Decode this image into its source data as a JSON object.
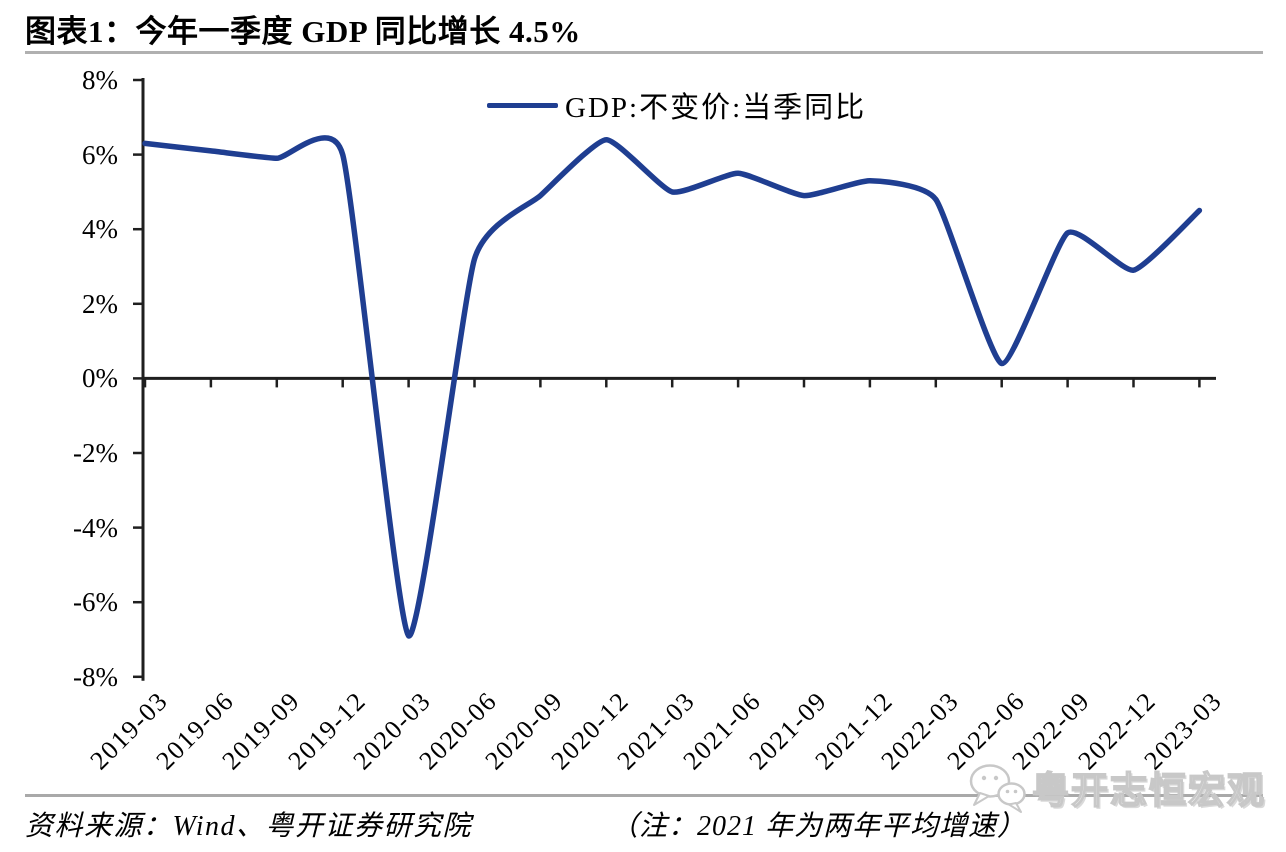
{
  "title": "图表1：今年一季度 GDP 同比增长 4.5%",
  "legend": {
    "label": "GDP:不变价:当季同比"
  },
  "footer": {
    "source": "资料来源：Wind、粤开证券研究院",
    "note": "（注：2021 年为两年平均增速）"
  },
  "watermark": {
    "label": "粤开志恒宏观",
    "icon": "wechat-icon"
  },
  "colors": {
    "line": "#1F3E91",
    "axis": "#1f1f1f",
    "title_rule": "#b0b0b0",
    "footer_rule": "#a9a9a9",
    "watermark": "#c8c8c8"
  },
  "chart_data": {
    "type": "line",
    "title": "图表1：今年一季度 GDP 同比增长 4.5%",
    "categories": [
      "2019-03",
      "2019-06",
      "2019-09",
      "2019-12",
      "2020-03",
      "2020-06",
      "2020-09",
      "2020-12",
      "2021-03",
      "2021-06",
      "2021-09",
      "2021-12",
      "2022-03",
      "2022-06",
      "2022-09",
      "2022-12",
      "2023-03"
    ],
    "series": [
      {
        "name": "GDP:不变价:当季同比",
        "values": [
          6.3,
          6.1,
          5.9,
          6.0,
          -6.9,
          3.2,
          4.9,
          6.4,
          5.0,
          5.5,
          4.9,
          5.3,
          4.8,
          0.4,
          3.9,
          2.9,
          4.5
        ]
      }
    ],
    "xlabel": "",
    "ylabel": "",
    "ylim": [
      -8,
      8
    ],
    "y_tick_step": 2,
    "y_tick_labels": [
      "8%",
      "6%",
      "4%",
      "2%",
      "0%",
      "-2%",
      "-4%",
      "-6%",
      "-8%"
    ],
    "x_axis_at": 0,
    "grid": false,
    "smoothed_line": true,
    "legend_position": "top-center"
  }
}
